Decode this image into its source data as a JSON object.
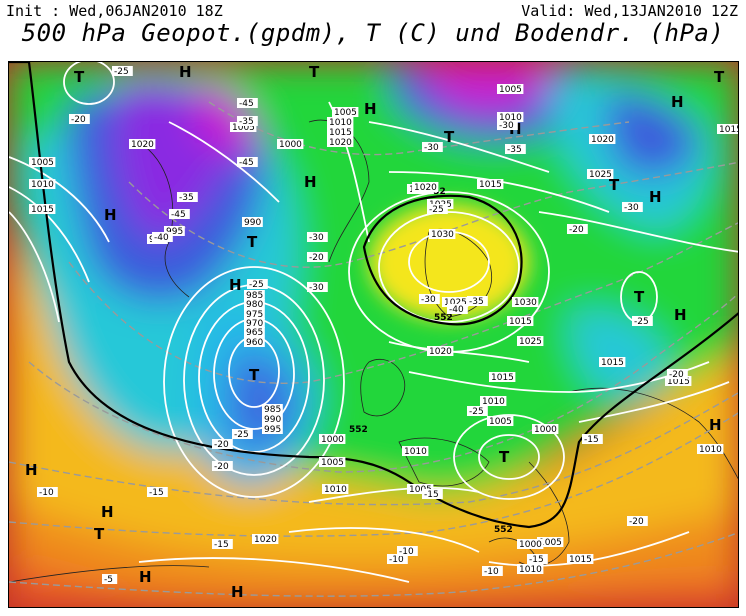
{
  "header": {
    "init": "Init : Wed,06JAN2010 18Z",
    "valid": "Valid: Wed,13JAN2010 12Z",
    "title": "500 hPa Geopot.(gpdm), T (C) und Bodendr. (hPa)"
  },
  "map": {
    "colors": {
      "deep_red": "#c0392b",
      "orange": "#f39c12",
      "yellow": "#f4e61a",
      "green": "#22d63a",
      "cyan": "#22c6e0",
      "blue": "#3a5bdc",
      "purple": "#8a2be2",
      "magenta": "#c81fd2",
      "isobar": "#ffffff",
      "isotherm": "#888888",
      "geopot_line": "#000000"
    },
    "geopot_labels": [
      "552",
      "552",
      "552",
      "552"
    ],
    "pressure_systems": [
      {
        "type": "T",
        "kind": "low",
        "label": "T"
      },
      {
        "type": "T",
        "kind": "low",
        "label": "T"
      },
      {
        "type": "T",
        "kind": "low",
        "label": "T"
      },
      {
        "type": "T",
        "kind": "low",
        "label": "T"
      },
      {
        "type": "T",
        "kind": "low",
        "label": "T"
      },
      {
        "type": "T",
        "kind": "low",
        "label": "T"
      },
      {
        "type": "T",
        "kind": "low",
        "label": "T"
      },
      {
        "type": "T",
        "kind": "low",
        "label": "T"
      },
      {
        "type": "T",
        "kind": "low",
        "label": "T"
      },
      {
        "type": "T",
        "kind": "low",
        "label": "T"
      },
      {
        "type": "H",
        "kind": "high",
        "label": "H"
      },
      {
        "type": "H",
        "kind": "high",
        "label": "H"
      },
      {
        "type": "H",
        "kind": "high",
        "label": "H"
      },
      {
        "type": "H",
        "kind": "high",
        "label": "H"
      },
      {
        "type": "H",
        "kind": "high",
        "label": "H"
      },
      {
        "type": "H",
        "kind": "high",
        "label": "H"
      },
      {
        "type": "H",
        "kind": "high",
        "label": "H"
      },
      {
        "type": "H",
        "kind": "high",
        "label": "H"
      },
      {
        "type": "H",
        "kind": "high",
        "label": "H"
      },
      {
        "type": "H",
        "kind": "high",
        "label": "H"
      },
      {
        "type": "H",
        "kind": "high",
        "label": "H"
      },
      {
        "type": "H",
        "kind": "high",
        "label": "H"
      },
      {
        "type": "H",
        "kind": "high",
        "label": "H"
      },
      {
        "type": "H",
        "kind": "high",
        "label": "H"
      }
    ],
    "pressure_labels": [
      "1005",
      "1010",
      "1015",
      "1020",
      "1005",
      "1000",
      "1005",
      "1010",
      "1015",
      "1020",
      "990",
      "995",
      "990",
      "985",
      "980",
      "975",
      "970",
      "965",
      "960",
      "985",
      "990",
      "995",
      "1000",
      "1005",
      "1010",
      "1020",
      "1025",
      "1030",
      "1025",
      "1020",
      "1015",
      "1010",
      "1005",
      "1000",
      "1005",
      "1010",
      "1015",
      "1020",
      "1025",
      "1030",
      "1015",
      "1020",
      "1015",
      "1015",
      "1010",
      "1005",
      "1000",
      "1010",
      "1015",
      "1010",
      "1005",
      "1020",
      "1025",
      "1015"
    ],
    "temperature_labels": [
      "-25",
      "-20",
      "-35",
      "-45",
      "-40",
      "-45",
      "-35",
      "-30",
      "-30",
      "-25",
      "-20",
      "-25",
      "-30",
      "-35",
      "-40",
      "-45",
      "-30",
      "-20",
      "-25",
      "-20",
      "-15",
      "-10",
      "-15",
      "-20",
      "-25",
      "-15",
      "-10",
      "-10",
      "-5",
      "-10",
      "-15",
      "-20",
      "-25",
      "-30",
      "-35",
      "-30",
      "-20",
      "-15"
    ]
  }
}
